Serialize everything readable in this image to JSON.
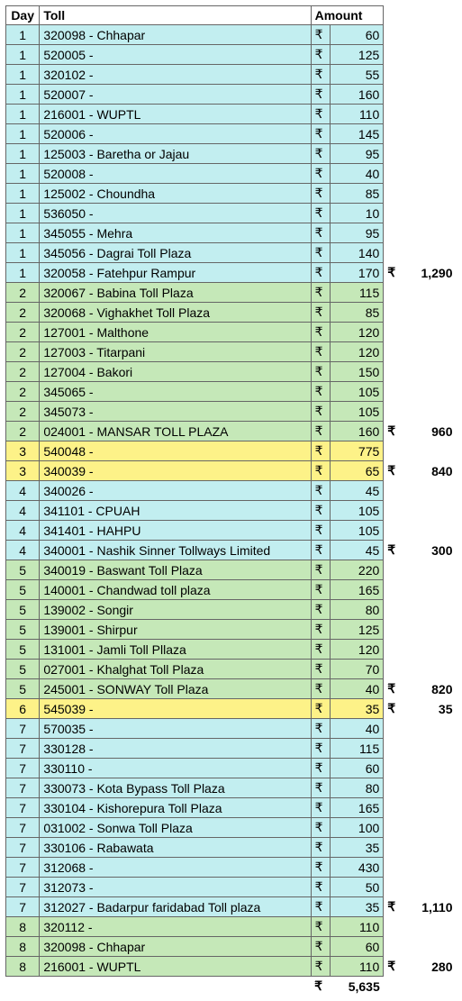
{
  "headers": {
    "day": "Day",
    "toll": "Toll",
    "amount": "Amount"
  },
  "currency": "₹",
  "colors": {
    "blue": "#c2eef0",
    "green": "#c5e8b8",
    "yellow": "#fdf288",
    "white": "#ffffff"
  },
  "subtotals": {
    "1": 1290,
    "2": 960,
    "3": 840,
    "4": 300,
    "5": 820,
    "6": 35,
    "7": 1110,
    "8": 280
  },
  "grand_total": 5635,
  "rows": [
    {
      "day": 1,
      "toll": "320098 - Chhapar",
      "amt": 60,
      "c": "blue"
    },
    {
      "day": 1,
      "toll": "520005 -",
      "amt": 125,
      "c": "blue"
    },
    {
      "day": 1,
      "toll": "320102 -",
      "amt": 55,
      "c": "blue"
    },
    {
      "day": 1,
      "toll": "520007 -",
      "amt": 160,
      "c": "blue"
    },
    {
      "day": 1,
      "toll": "216001 - WUPTL",
      "amt": 110,
      "c": "blue"
    },
    {
      "day": 1,
      "toll": "520006 -",
      "amt": 145,
      "c": "blue"
    },
    {
      "day": 1,
      "toll": "125003 - Baretha or Jajau",
      "amt": 95,
      "c": "blue"
    },
    {
      "day": 1,
      "toll": "520008 -",
      "amt": 40,
      "c": "blue"
    },
    {
      "day": 1,
      "toll": "125002 - Choundha",
      "amt": 85,
      "c": "blue"
    },
    {
      "day": 1,
      "toll": "536050 -",
      "amt": 10,
      "c": "blue"
    },
    {
      "day": 1,
      "toll": "345055 - Mehra",
      "amt": 95,
      "c": "blue"
    },
    {
      "day": 1,
      "toll": "345056 - Dagrai Toll Plaza",
      "amt": 140,
      "c": "blue"
    },
    {
      "day": 1,
      "toll": "320058 - Fatehpur Rampur",
      "amt": 170,
      "c": "blue",
      "sub": "1"
    },
    {
      "day": 2,
      "toll": "320067 - Babina Toll Plaza",
      "amt": 115,
      "c": "green"
    },
    {
      "day": 2,
      "toll": "320068 - Vighakhet Toll Plaza",
      "amt": 85,
      "c": "green"
    },
    {
      "day": 2,
      "toll": "127001 - Malthone",
      "amt": 120,
      "c": "green"
    },
    {
      "day": 2,
      "toll": "127003 - Titarpani",
      "amt": 120,
      "c": "green"
    },
    {
      "day": 2,
      "toll": "127004 - Bakori",
      "amt": 150,
      "c": "green"
    },
    {
      "day": 2,
      "toll": "345065 -",
      "amt": 105,
      "c": "green"
    },
    {
      "day": 2,
      "toll": "345073 -",
      "amt": 105,
      "c": "green"
    },
    {
      "day": 2,
      "toll": "024001 - MANSAR TOLL PLAZA",
      "amt": 160,
      "c": "green",
      "sub": "2"
    },
    {
      "day": 3,
      "toll": "540048 -",
      "amt": 775,
      "c": "yellow"
    },
    {
      "day": 3,
      "toll": "340039 -",
      "amt": 65,
      "c": "yellow",
      "sub": "3"
    },
    {
      "day": 4,
      "toll": "340026 -",
      "amt": 45,
      "c": "blue"
    },
    {
      "day": 4,
      "toll": "341101 - CPUAH",
      "amt": 105,
      "c": "blue"
    },
    {
      "day": 4,
      "toll": "341401 - HAHPU",
      "amt": 105,
      "c": "blue"
    },
    {
      "day": 4,
      "toll": "340001 - Nashik Sinner Tollways Limited",
      "amt": 45,
      "c": "blue",
      "sub": "4"
    },
    {
      "day": 5,
      "toll": "340019 - Baswant Toll Plaza",
      "amt": 220,
      "c": "green"
    },
    {
      "day": 5,
      "toll": "140001 - Chandwad toll plaza",
      "amt": 165,
      "c": "green"
    },
    {
      "day": 5,
      "toll": "139002 - Songir",
      "amt": 80,
      "c": "green"
    },
    {
      "day": 5,
      "toll": "139001 - Shirpur",
      "amt": 125,
      "c": "green"
    },
    {
      "day": 5,
      "toll": "131001 - Jamli Toll Pllaza",
      "amt": 120,
      "c": "green"
    },
    {
      "day": 5,
      "toll": "027001 - Khalghat Toll Plaza",
      "amt": 70,
      "c": "green"
    },
    {
      "day": 5,
      "toll": "245001 - SONWAY Toll Plaza",
      "amt": 40,
      "c": "green",
      "sub": "5"
    },
    {
      "day": 6,
      "toll": "545039 -",
      "amt": 35,
      "c": "yellow",
      "sub": "6"
    },
    {
      "day": 7,
      "toll": "570035 -",
      "amt": 40,
      "c": "blue"
    },
    {
      "day": 7,
      "toll": "330128 -",
      "amt": 115,
      "c": "blue"
    },
    {
      "day": 7,
      "toll": "330110 -",
      "amt": 60,
      "c": "blue"
    },
    {
      "day": 7,
      "toll": "330073 - Kota Bypass Toll Plaza",
      "amt": 80,
      "c": "blue"
    },
    {
      "day": 7,
      "toll": "330104 - Kishorepura Toll Plaza",
      "amt": 165,
      "c": "blue"
    },
    {
      "day": 7,
      "toll": "031002 - Sonwa Toll Plaza",
      "amt": 100,
      "c": "blue"
    },
    {
      "day": 7,
      "toll": "330106 - Rabawata",
      "amt": 35,
      "c": "blue"
    },
    {
      "day": 7,
      "toll": "312068 -",
      "amt": 430,
      "c": "blue"
    },
    {
      "day": 7,
      "toll": "312073 -",
      "amt": 50,
      "c": "blue"
    },
    {
      "day": 7,
      "toll": "312027 - Badarpur faridabad Toll plaza",
      "amt": 35,
      "c": "blue",
      "sub": "7"
    },
    {
      "day": 8,
      "toll": "320112 -",
      "amt": 110,
      "c": "green"
    },
    {
      "day": 8,
      "toll": "320098 - Chhapar",
      "amt": 60,
      "c": "green"
    },
    {
      "day": 8,
      "toll": "216001 - WUPTL",
      "amt": 110,
      "c": "green",
      "sub": "8"
    }
  ]
}
